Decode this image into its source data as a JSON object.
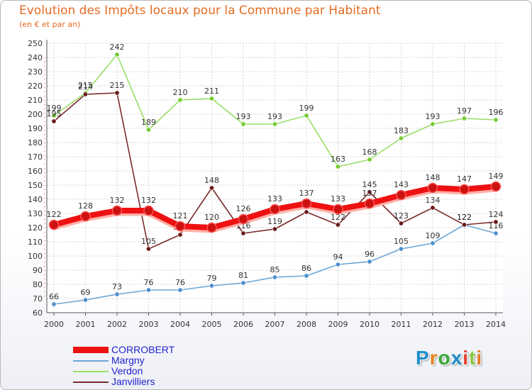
{
  "title": "Evolution des Impôts locaux pour la Commune par Habitant",
  "subtitle": "(en € et par an)",
  "logo": {
    "text": "Proxiti",
    "letters": [
      "P",
      "r",
      "o",
      "x",
      "i",
      "t",
      "i"
    ],
    "colors": [
      "#1f8ec9",
      "#e67e22",
      "#39a935",
      "#1f8ec9",
      "#e63c2e",
      "#8bc53f",
      "#e67e22"
    ]
  },
  "chart_data": {
    "type": "line",
    "title": "Evolution des Impôts locaux pour la Commune par Habitant",
    "subtitle": "(en € et par an)",
    "categories": [
      "2000",
      "2001",
      "2002",
      "2003",
      "2004",
      "2005",
      "2006",
      "2007",
      "2008",
      "2009",
      "2010",
      "2011",
      "2012",
      "2013",
      "2014"
    ],
    "ylim": [
      60,
      250
    ],
    "yticks": [
      "60",
      "70",
      "80",
      "90",
      "100",
      "110",
      "120",
      "130",
      "140",
      "150",
      "160",
      "170",
      "180",
      "190",
      "200",
      "210",
      "220",
      "230",
      "240",
      "250"
    ],
    "grid": true,
    "series": [
      {
        "name": "CORROBERT",
        "color": "#ee1111",
        "marker": "#cc1111",
        "bold": true,
        "values": [
          122,
          128,
          132,
          132,
          121,
          120,
          126,
          133,
          137,
          133,
          137,
          143,
          148,
          147,
          149
        ],
        "labels": [
          "122",
          "128",
          "132",
          "132",
          "121",
          "120",
          "126",
          "133",
          "137",
          "133",
          "137",
          "143",
          "148",
          "147",
          "149"
        ]
      },
      {
        "name": "Margny",
        "color": "#6aa6d6",
        "marker": "#4e8fc9",
        "bold": false,
        "values": [
          66,
          69,
          73,
          76,
          76,
          79,
          81,
          85,
          86,
          94,
          96,
          105,
          109,
          122,
          116
        ],
        "labels": [
          "66",
          "69",
          "73",
          "76",
          "76",
          "79",
          "81",
          "85",
          "86",
          "94",
          "96",
          "105",
          "109",
          "122",
          "116"
        ]
      },
      {
        "name": "Verdon",
        "color": "#99dd66",
        "marker": "#77cc33",
        "bold": false,
        "values": [
          199,
          215,
          242,
          189,
          210,
          211,
          193,
          193,
          199,
          163,
          168,
          183,
          193,
          197,
          196
        ],
        "labels": [
          "199",
          "215",
          "242",
          "189",
          "210",
          "211",
          "193",
          "193",
          "199",
          "163",
          "168",
          "183",
          "193",
          "197",
          "196"
        ]
      },
      {
        "name": "Janvilliers",
        "color": "#7a2a2a",
        "marker": "#6a1a1a",
        "bold": false,
        "values": [
          195,
          214,
          215,
          105,
          115,
          148,
          116,
          119,
          131,
          122,
          145,
          123,
          134,
          122,
          124
        ],
        "labels": [
          "195",
          "214",
          "215",
          "105",
          "115",
          "148",
          "116",
          "119",
          "131",
          "122",
          "145",
          "123",
          "134",
          "122",
          "124"
        ]
      }
    ]
  }
}
